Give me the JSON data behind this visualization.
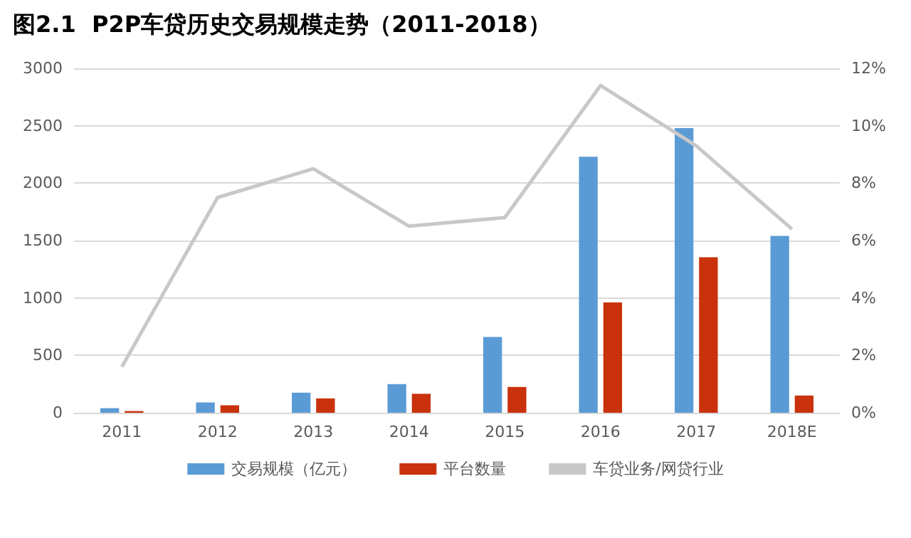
{
  "chart_data": {
    "type": "bar",
    "title": "图2.1  P2P车贷历史交易规模走势（2011-2018）",
    "categories": [
      "2011",
      "2012",
      "2013",
      "2014",
      "2015",
      "2016",
      "2017",
      "2018E"
    ],
    "series": [
      {
        "name": "交易规模（亿元）",
        "color": "#5b9bd5",
        "values": [
          40,
          90,
          175,
          250,
          660,
          2230,
          2480,
          1540
        ]
      },
      {
        "name": "平台数量",
        "color": "#c9320c",
        "values": [
          15,
          65,
          125,
          165,
          225,
          960,
          1355,
          150
        ]
      },
      {
        "name": "车贷业务/网贷行业",
        "type": "line",
        "axis": "y2",
        "color": "#c8c8c8",
        "values": [
          1.6,
          7.5,
          8.5,
          6.5,
          6.8,
          11.4,
          9.3,
          6.4
        ]
      }
    ],
    "ylim": [
      0,
      3000
    ],
    "yticks": [
      0,
      500,
      1000,
      1500,
      2000,
      2500,
      3000
    ],
    "y2lim": [
      0,
      12
    ],
    "y2ticks": [
      {
        "value": 0,
        "label": "0%"
      },
      {
        "value": 2,
        "label": "2%"
      },
      {
        "value": 4,
        "label": "4%"
      },
      {
        "value": 6,
        "label": "6%"
      },
      {
        "value": 8,
        "label": "8%"
      },
      {
        "value": 10,
        "label": "10%"
      },
      {
        "value": 12,
        "label": "12%"
      }
    ],
    "grid": "y",
    "legend": "bottom",
    "marker": "none",
    "line_style": "solid"
  }
}
